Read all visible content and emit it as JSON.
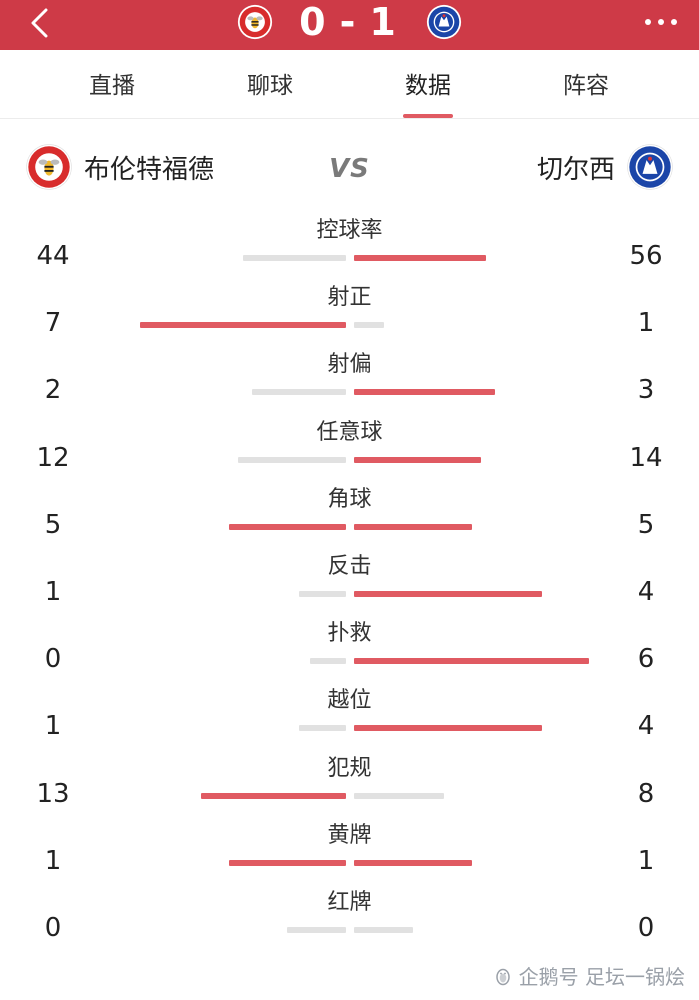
{
  "header": {
    "home_score": "0",
    "separator": "-",
    "away_score": "1"
  },
  "tabs": [
    {
      "label": "直播",
      "active": false
    },
    {
      "label": "聊球",
      "active": false
    },
    {
      "label": "数据",
      "active": true
    },
    {
      "label": "阵容",
      "active": false
    }
  ],
  "teams": {
    "home": "布伦特福德",
    "vs": "VS",
    "away": "切尔西"
  },
  "colors": {
    "accent": "#ce3a47",
    "bar_leader": "#e05a62",
    "bar_trailer": "#e1e1e1"
  },
  "stats": [
    {
      "label": "控球率",
      "home": "44",
      "away": "56",
      "home_val": 44,
      "away_val": 56
    },
    {
      "label": "射正",
      "home": "7",
      "away": "1",
      "home_val": 7,
      "away_val": 1
    },
    {
      "label": "射偏",
      "home": "2",
      "away": "3",
      "home_val": 2,
      "away_val": 3
    },
    {
      "label": "任意球",
      "home": "12",
      "away": "14",
      "home_val": 12,
      "away_val": 14
    },
    {
      "label": "角球",
      "home": "5",
      "away": "5",
      "home_val": 5,
      "away_val": 5
    },
    {
      "label": "反击",
      "home": "1",
      "away": "4",
      "home_val": 1,
      "away_val": 4
    },
    {
      "label": "扑救",
      "home": "0",
      "away": "6",
      "home_val": 0,
      "away_val": 6
    },
    {
      "label": "越位",
      "home": "1",
      "away": "4",
      "home_val": 1,
      "away_val": 4
    },
    {
      "label": "犯规",
      "home": "13",
      "away": "8",
      "home_val": 13,
      "away_val": 8
    },
    {
      "label": "黄牌",
      "home": "1",
      "away": "1",
      "home_val": 1,
      "away_val": 1
    },
    {
      "label": "红牌",
      "home": "0",
      "away": "0",
      "home_val": 0,
      "away_val": 0
    }
  ],
  "watermark": "企鹅号 足坛一锅烩",
  "icons": {
    "back": "chevron-left-icon",
    "more": "more-dots-icon",
    "home_logo": "brentford-logo",
    "away_logo": "chelsea-logo"
  }
}
